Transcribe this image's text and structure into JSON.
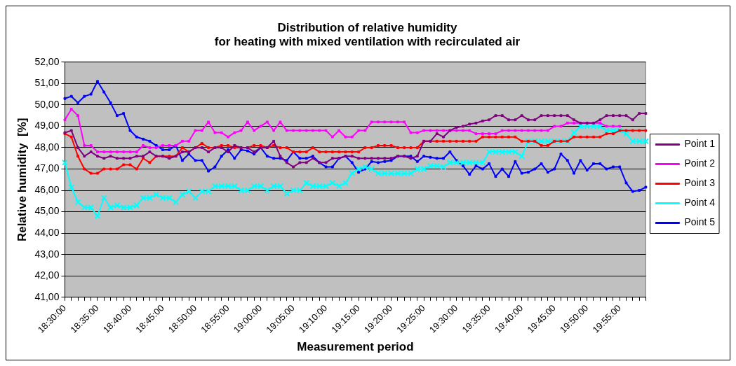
{
  "chart_data": {
    "type": "line",
    "title": "Distribution of relative humidity\nfor heating with mixed ventilation with recirculated air",
    "xlabel": "Measurement period",
    "ylabel": "Relative humidity  [%]",
    "categories": [
      "18:30:00",
      null,
      null,
      null,
      null,
      "18:35:00",
      null,
      null,
      null,
      null,
      "18:40:00",
      null,
      null,
      null,
      null,
      "18:45:00",
      null,
      null,
      null,
      null,
      "18:50:00",
      null,
      null,
      null,
      null,
      "18:55:00",
      null,
      null,
      null,
      null,
      "19:00:00",
      null,
      null,
      null,
      null,
      "19:05:00",
      null,
      null,
      null,
      null,
      "19:10:00",
      null,
      null,
      null,
      null,
      "19:15:00",
      null,
      null,
      null,
      null,
      "19:20:00",
      null,
      null,
      null,
      null,
      "19:25:00",
      null,
      null,
      null,
      null,
      "19:30:00",
      null,
      null,
      null,
      null,
      "19:35:00",
      null,
      null,
      null,
      null,
      "19:40:00",
      null,
      null,
      null,
      null,
      "19:45:00",
      null,
      null,
      null,
      null,
      "19:50:00",
      null,
      null,
      null,
      null,
      "19:55:00",
      null,
      null,
      null,
      null
    ],
    "series": [
      {
        "name": "Point 1",
        "color": "#800080",
        "marker": "square",
        "values": [
          48.7,
          48.8,
          48.0,
          47.6,
          47.8,
          47.6,
          47.5,
          47.6,
          47.5,
          47.5,
          47.5,
          47.6,
          47.6,
          47.8,
          47.6,
          47.6,
          47.5,
          47.6,
          47.8,
          47.8,
          48.0,
          48.0,
          47.8,
          48.0,
          48.0,
          47.8,
          48.1,
          48.0,
          48.0,
          47.8,
          48.0,
          48.0,
          48.3,
          47.6,
          47.3,
          47.1,
          47.3,
          47.3,
          47.5,
          47.3,
          47.3,
          47.5,
          47.5,
          47.6,
          47.6,
          47.5,
          47.5,
          47.5,
          47.5,
          47.5,
          47.5,
          47.6,
          47.6,
          47.5,
          47.6,
          48.3,
          48.3,
          48.65,
          48.5,
          48.8,
          48.95,
          49.0,
          49.1,
          49.15,
          49.25,
          49.3,
          49.5,
          49.5,
          49.3,
          49.3,
          49.5,
          49.3,
          49.3,
          49.5,
          49.5,
          49.5,
          49.5,
          49.5,
          49.3,
          49.15,
          49.15,
          49.15,
          49.3,
          49.5,
          49.5,
          49.5,
          49.5,
          49.3,
          49.6,
          49.6
        ]
      },
      {
        "name": "Point 2",
        "color": "#ff00ff",
        "marker": "square",
        "values": [
          49.3,
          49.8,
          49.5,
          48.1,
          48.1,
          47.8,
          47.8,
          47.8,
          47.8,
          47.8,
          47.8,
          47.8,
          48.1,
          48.0,
          48.0,
          48.1,
          48.1,
          48.1,
          48.3,
          48.3,
          48.8,
          48.8,
          49.2,
          48.7,
          48.7,
          48.5,
          48.7,
          48.8,
          49.2,
          48.8,
          49.0,
          49.2,
          48.8,
          49.2,
          48.8,
          48.8,
          48.8,
          48.8,
          48.8,
          48.8,
          48.8,
          48.5,
          48.8,
          48.5,
          48.5,
          48.8,
          48.8,
          49.2,
          49.2,
          49.2,
          49.2,
          49.2,
          49.2,
          48.7,
          48.7,
          48.8,
          48.8,
          48.8,
          48.8,
          48.8,
          48.8,
          48.8,
          48.8,
          48.65,
          48.65,
          48.65,
          48.65,
          48.8,
          48.8,
          48.8,
          48.8,
          48.8,
          48.8,
          48.8,
          48.8,
          49.0,
          49.0,
          49.15,
          49.15,
          49.15,
          49.15,
          49.15,
          49.15,
          49.0,
          49.0,
          49.0,
          null,
          null,
          null,
          null
        ]
      },
      {
        "name": "Point 3",
        "color": "#ff0000",
        "marker": "square",
        "values": [
          48.65,
          48.5,
          47.6,
          47.0,
          46.8,
          46.8,
          47.0,
          47.0,
          47.0,
          47.2,
          47.2,
          47.0,
          47.5,
          47.3,
          47.6,
          47.6,
          47.6,
          47.6,
          48.0,
          47.8,
          48.0,
          48.2,
          48.0,
          48.0,
          48.1,
          48.1,
          48.0,
          48.0,
          48.0,
          48.1,
          48.1,
          48.0,
          48.1,
          48.0,
          48.0,
          47.8,
          47.8,
          47.8,
          48.0,
          47.8,
          47.8,
          47.8,
          47.8,
          47.8,
          47.8,
          47.8,
          48.0,
          48.0,
          48.1,
          48.1,
          48.1,
          48.0,
          48.0,
          48.0,
          48.0,
          48.3,
          48.3,
          48.3,
          48.3,
          48.3,
          48.3,
          48.3,
          48.3,
          48.3,
          48.5,
          48.5,
          48.5,
          48.5,
          48.5,
          48.5,
          48.3,
          48.3,
          48.3,
          48.1,
          48.1,
          48.3,
          48.3,
          48.3,
          48.5,
          48.5,
          48.5,
          48.5,
          48.5,
          48.65,
          48.65,
          48.8,
          48.8,
          48.8,
          48.8,
          48.8
        ]
      },
      {
        "name": "Point 4",
        "color": "#00ffff",
        "marker": "cross",
        "values": [
          47.3,
          46.15,
          45.45,
          45.2,
          45.2,
          44.8,
          45.65,
          45.2,
          45.3,
          45.2,
          45.2,
          45.3,
          45.65,
          45.65,
          45.8,
          45.65,
          45.65,
          45.45,
          45.8,
          45.95,
          45.65,
          45.95,
          45.95,
          46.2,
          46.2,
          46.2,
          46.2,
          46.0,
          46.0,
          46.2,
          46.2,
          46.0,
          46.2,
          46.2,
          45.85,
          46.0,
          46.0,
          46.35,
          46.2,
          46.2,
          46.2,
          46.35,
          46.2,
          46.35,
          46.8,
          47.0,
          47.1,
          47.0,
          46.8,
          46.8,
          46.8,
          46.8,
          46.8,
          46.8,
          47.0,
          47.0,
          47.15,
          47.15,
          47.1,
          47.3,
          47.3,
          47.3,
          47.3,
          47.3,
          47.3,
          47.8,
          47.8,
          47.8,
          47.8,
          47.8,
          47.6,
          48.3,
          48.3,
          48.3,
          48.3,
          48.3,
          48.3,
          48.3,
          48.7,
          49.0,
          49.0,
          49.0,
          49.0,
          48.8,
          48.8,
          48.8,
          48.65,
          48.3,
          48.3,
          48.3
        ]
      },
      {
        "name": "Point 5",
        "color": "#0000ff",
        "marker": "square",
        "values": [
          50.3,
          50.4,
          50.1,
          50.4,
          50.5,
          51.1,
          50.6,
          50.1,
          49.5,
          49.6,
          48.8,
          48.5,
          48.4,
          48.3,
          48.1,
          47.9,
          47.9,
          48.1,
          47.4,
          47.7,
          47.4,
          47.4,
          46.9,
          47.1,
          47.6,
          47.9,
          47.5,
          47.9,
          47.85,
          47.7,
          48.0,
          47.6,
          47.5,
          47.5,
          47.4,
          47.8,
          47.5,
          47.5,
          47.6,
          47.3,
          47.1,
          47.1,
          47.5,
          47.6,
          47.3,
          46.85,
          47.0,
          47.35,
          47.3,
          47.35,
          47.4,
          47.6,
          47.6,
          47.6,
          47.35,
          47.6,
          47.55,
          47.5,
          47.5,
          47.8,
          47.4,
          47.15,
          46.75,
          47.15,
          47.0,
          47.25,
          46.65,
          47.0,
          46.65,
          47.35,
          46.8,
          46.85,
          47.0,
          47.25,
          46.85,
          47.0,
          47.7,
          47.4,
          46.8,
          47.4,
          46.95,
          47.25,
          47.25,
          47.0,
          47.1,
          47.1,
          46.35,
          45.95,
          46.0,
          46.15
        ]
      }
    ],
    "ylim": [
      41,
      52
    ],
    "yticks": [
      {
        "value": 41,
        "label": "41,00"
      },
      {
        "value": 42,
        "label": "42,00"
      },
      {
        "value": 43,
        "label": "43,00"
      },
      {
        "value": 44,
        "label": "44,00"
      },
      {
        "value": 45,
        "label": "45,00"
      },
      {
        "value": 46,
        "label": "46,00"
      },
      {
        "value": 47,
        "label": "47,00"
      },
      {
        "value": 48,
        "label": "48,00"
      },
      {
        "value": 49,
        "label": "49,00"
      },
      {
        "value": 50,
        "label": "50,00"
      },
      {
        "value": 51,
        "label": "51,00"
      },
      {
        "value": 52,
        "label": "52,00"
      }
    ],
    "grid": "y",
    "legend": "right",
    "line_style": "solid"
  }
}
